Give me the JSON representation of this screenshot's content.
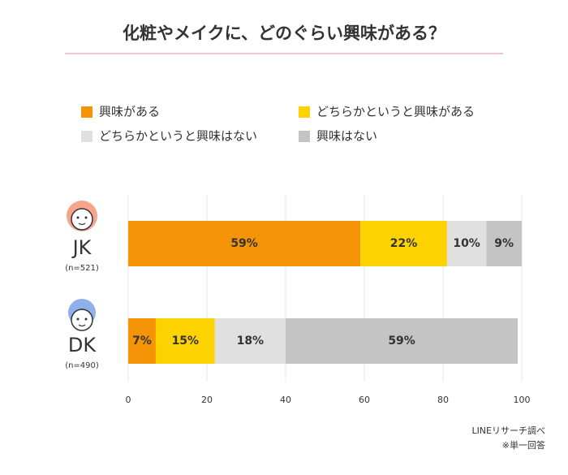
{
  "chart_data": {
    "type": "stacked-bar",
    "title": "化粧やメイクに、どのぐらい興味がある？",
    "categories": [
      "JK",
      "DK"
    ],
    "sample_sizes": [
      "(n=521)",
      "(n=490)"
    ],
    "series": [
      {
        "name": "興味がある",
        "color": "#f59406",
        "values": [
          59,
          7
        ],
        "value_labels": [
          "59%",
          "7%"
        ]
      },
      {
        "name": "どちらかというと興味がある",
        "color": "#fcd200",
        "values": [
          22,
          15
        ],
        "value_labels": [
          "22%",
          "15%"
        ]
      },
      {
        "name": "どちらかというと興味はない",
        "color": "#e0e0e0",
        "values": [
          10,
          18
        ],
        "value_labels": [
          "10%",
          "18%"
        ]
      },
      {
        "name": "興味はない",
        "color": "#c4c4c4",
        "values": [
          9,
          59
        ],
        "value_labels": [
          "9%",
          "59%"
        ]
      }
    ],
    "xlim": [
      0,
      100
    ],
    "xticks": [
      0,
      20,
      40,
      60,
      80,
      100
    ],
    "grid": true,
    "notes": [
      "LINEリサーチ調べ",
      "※単一回答"
    ]
  }
}
